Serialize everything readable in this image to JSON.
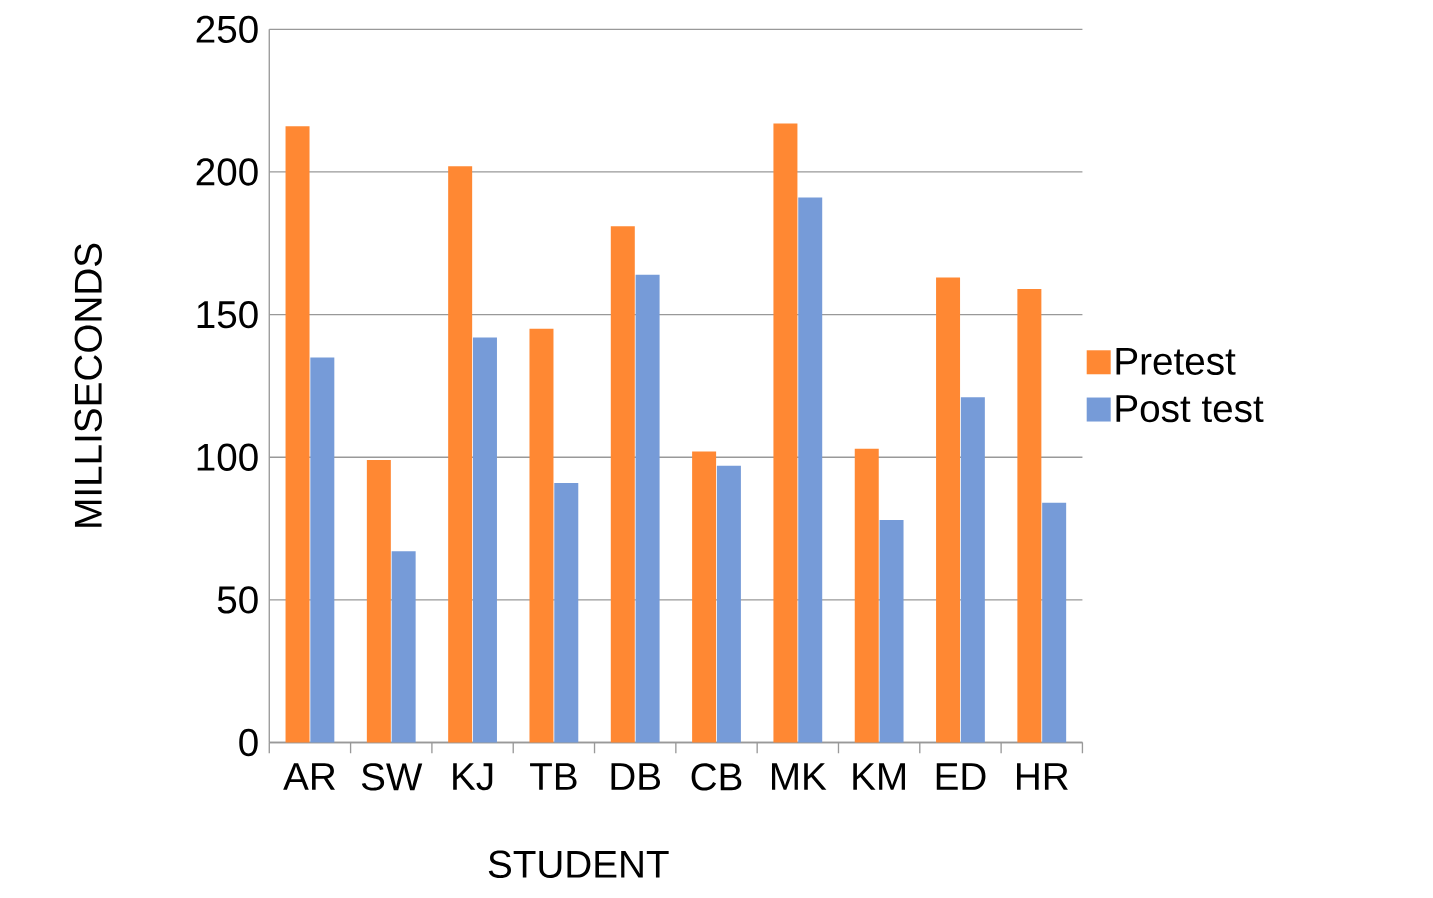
{
  "chart_data": {
    "type": "bar",
    "xlabel": "STUDENT",
    "ylabel": "MILLISECONDS",
    "categories": [
      "AR",
      "SW",
      "KJ",
      "TB",
      "DB",
      "CB",
      "MK",
      "KM",
      "ED",
      "HR"
    ],
    "series": [
      {
        "name": "Pretest",
        "color": "#ff8833",
        "values": [
          216,
          99,
          202,
          145,
          181,
          102,
          217,
          103,
          163,
          159
        ]
      },
      {
        "name": "Post test",
        "color": "#769bd8",
        "values": [
          135,
          67,
          142,
          91,
          164,
          97,
          191,
          78,
          121,
          84
        ]
      }
    ],
    "ylim": [
      0,
      250
    ],
    "yticks": [
      0,
      50,
      100,
      150,
      200,
      250
    ],
    "grid": "y",
    "legend": "right"
  }
}
